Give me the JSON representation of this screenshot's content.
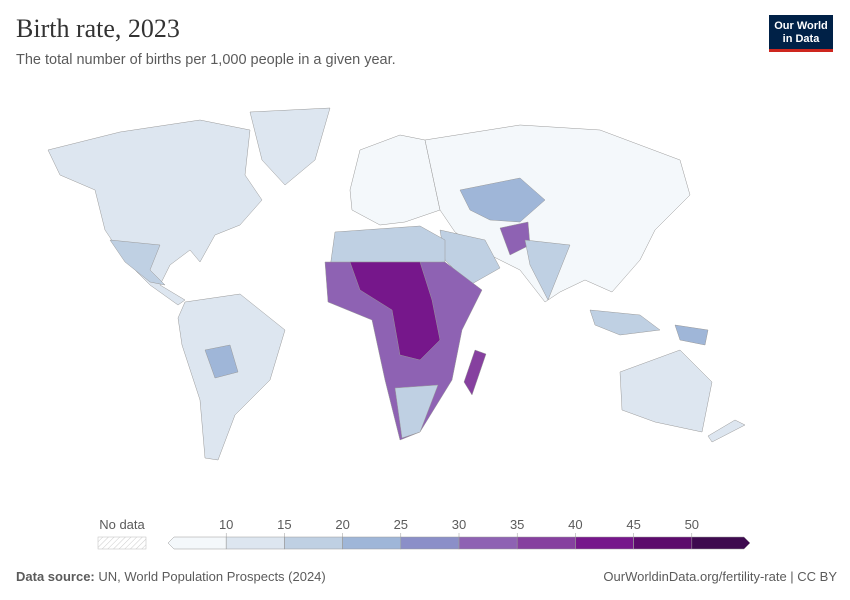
{
  "header": {
    "title": "Birth rate, 2023",
    "subtitle": "The total number of births per 1,000 people in a given year."
  },
  "logo": {
    "lines": [
      "Our World",
      "in Data"
    ]
  },
  "legend": {
    "no_data": "No data",
    "ticks": [
      10,
      15,
      20,
      25,
      30,
      35,
      40,
      45,
      50
    ],
    "colors": [
      "#f4f8fb",
      "#dde6f0",
      "#bfd0e3",
      "#9fb6d8",
      "#8b8fc8",
      "#8e62b3",
      "#86409f",
      "#76178b",
      "#5c0b6c",
      "#3e0a4f"
    ]
  },
  "footer": {
    "source_label": "Data source:",
    "source": "UN, World Population Prospects (2024)",
    "url": "OurWorldinData.org/fertility-rate | CC BY"
  }
}
